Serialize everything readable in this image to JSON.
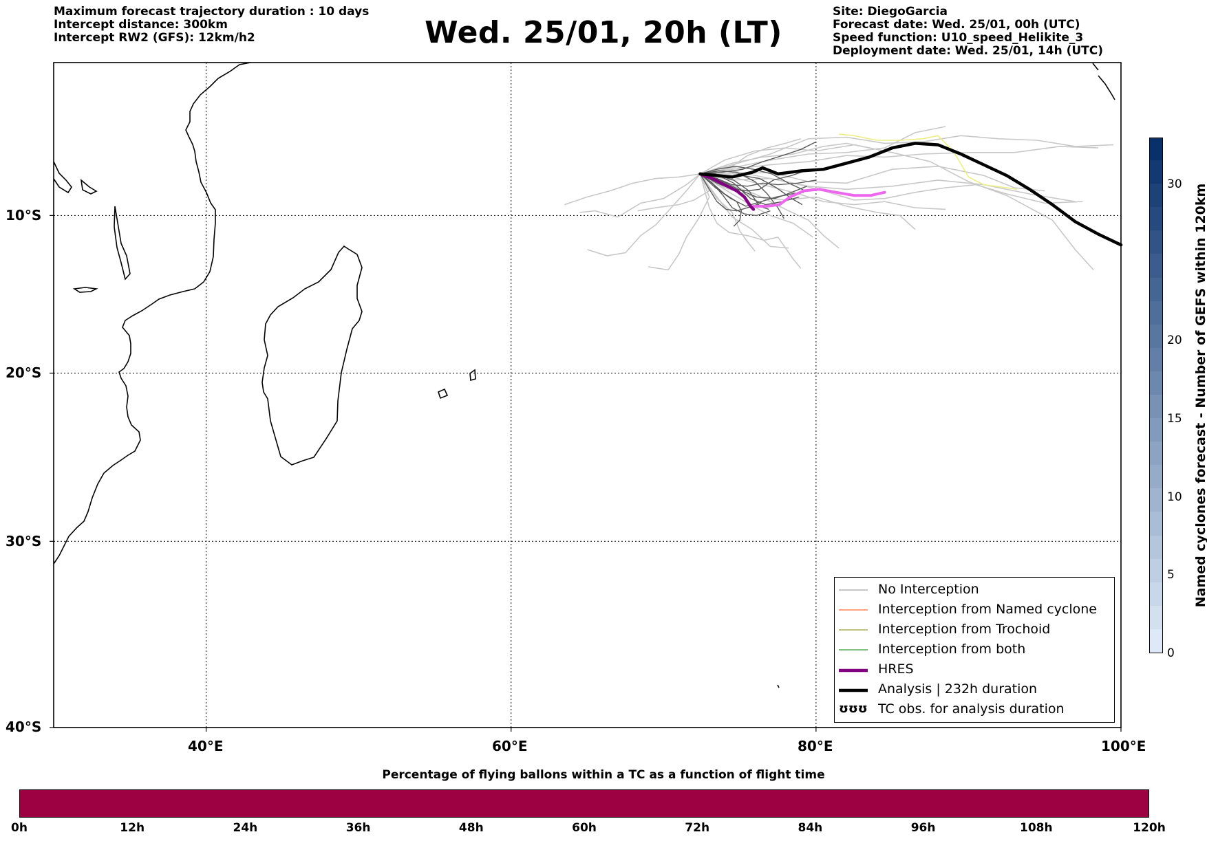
{
  "header": {
    "left_lines": [
      "Maximum forecast trajectory duration : 10 days",
      "Intercept distance: 300km",
      "Intercept RW2 (GFS):  12km/h2"
    ],
    "title": "Wed. 25/01, 20h (LT)",
    "right_lines": [
      "Site: DiegoGarcia",
      "Forecast date: Wed. 25/01, 00h (UTC)",
      "Speed function: U10_speed_Helikite_3",
      "Deployment date: Wed. 25/01, 14h (UTC)"
    ]
  },
  "map": {
    "lon_range": [
      30,
      100
    ],
    "lat_range": [
      -40,
      0
    ],
    "lon_ticks": [
      {
        "value": 40,
        "label": "40°E"
      },
      {
        "value": 60,
        "label": "60°E"
      },
      {
        "value": 80,
        "label": "80°E"
      },
      {
        "value": 100,
        "label": "100°E"
      }
    ],
    "lat_ticks": [
      {
        "value": -10,
        "label": "10°S"
      },
      {
        "value": -20,
        "label": "20°S"
      },
      {
        "value": -30,
        "label": "30°S"
      },
      {
        "value": -40,
        "label": "40°S"
      }
    ],
    "grid": "dotted",
    "deployment_site": {
      "lon": 72.4,
      "lat": -7.3
    },
    "analysis_track": [
      [
        72.4,
        -7.3
      ],
      [
        73.5,
        -7.4
      ],
      [
        74.5,
        -7.5
      ],
      [
        75.8,
        -7.2
      ],
      [
        76.5,
        -6.9
      ],
      [
        77.5,
        -7.3
      ],
      [
        79,
        -7.1
      ],
      [
        80.5,
        -7.0
      ],
      [
        82,
        -6.6
      ],
      [
        83.5,
        -6.2
      ],
      [
        85,
        -5.6
      ],
      [
        86.5,
        -5.3
      ],
      [
        88,
        -5.4
      ],
      [
        89.5,
        -6.0
      ],
      [
        91,
        -6.7
      ],
      [
        92.5,
        -7.4
      ],
      [
        94,
        -8.3
      ],
      [
        95.5,
        -9.3
      ],
      [
        97,
        -10.4
      ],
      [
        98.5,
        -11.2
      ],
      [
        100,
        -11.9
      ]
    ],
    "hres_track": [
      [
        72.4,
        -7.3
      ],
      [
        73.2,
        -7.6
      ],
      [
        74.0,
        -8.0
      ],
      [
        74.8,
        -8.4
      ],
      [
        75.3,
        -8.8
      ],
      [
        75.7,
        -9.4
      ],
      [
        75.9,
        -9.6
      ]
    ],
    "hres_light_track": [
      [
        75.9,
        -9.4
      ],
      [
        76.8,
        -9.4
      ],
      [
        77.6,
        -9.3
      ],
      [
        78.3,
        -8.8
      ],
      [
        79.2,
        -8.4
      ],
      [
        80.2,
        -8.3
      ],
      [
        81.3,
        -8.5
      ],
      [
        82.5,
        -8.7
      ],
      [
        83.6,
        -8.7
      ],
      [
        84.5,
        -8.5
      ]
    ],
    "yellow_track": [
      [
        81.5,
        -4.7
      ],
      [
        82.5,
        -4.8
      ],
      [
        84,
        -5.1
      ],
      [
        85.5,
        -5.1
      ],
      [
        87,
        -5.0
      ],
      [
        88,
        -4.8
      ],
      [
        89,
        -5.8
      ],
      [
        90,
        -7.5
      ],
      [
        91,
        -8.0
      ],
      [
        92.5,
        -8.2
      ],
      [
        93.2,
        -8.3
      ]
    ],
    "gefs_tracks_dark": [
      [
        [
          72.4,
          -7.3
        ],
        [
          73.5,
          -7.9
        ],
        [
          74.5,
          -8.3
        ],
        [
          75.5,
          -8.4
        ],
        [
          76.3,
          -8.3
        ],
        [
          77.2,
          -7.7
        ],
        [
          78.4,
          -7.4
        ],
        [
          79.6,
          -7.0
        ]
      ],
      [
        [
          72.4,
          -7.3
        ],
        [
          73.4,
          -8.2
        ],
        [
          74.4,
          -8.9
        ],
        [
          75.4,
          -9.4
        ],
        [
          76.4,
          -9.1
        ],
        [
          77.4,
          -8.8
        ],
        [
          78.4,
          -8.6
        ],
        [
          79.2,
          -8.5
        ]
      ],
      [
        [
          72.4,
          -7.3
        ],
        [
          73.6,
          -7.4
        ],
        [
          74.6,
          -7.7
        ],
        [
          75.6,
          -8.4
        ],
        [
          76.3,
          -9.4
        ],
        [
          76.9,
          -9.6
        ]
      ],
      [
        [
          72.4,
          -7.3
        ],
        [
          73.3,
          -8.0
        ],
        [
          74.0,
          -8.6
        ],
        [
          74.8,
          -9.1
        ],
        [
          75.1,
          -9.7
        ],
        [
          75.0,
          -10.3
        ],
        [
          74.6,
          -10.7
        ]
      ],
      [
        [
          72.4,
          -7.3
        ],
        [
          73.8,
          -7.2
        ],
        [
          75.2,
          -7.0
        ],
        [
          76.5,
          -6.5
        ],
        [
          77.8,
          -6.1
        ],
        [
          79.0,
          -5.7
        ],
        [
          80.0,
          -5.2
        ]
      ],
      [
        [
          72.4,
          -7.3
        ],
        [
          73.5,
          -7.6
        ],
        [
          74.5,
          -8.0
        ],
        [
          75.5,
          -8.1
        ],
        [
          76.5,
          -7.9
        ],
        [
          77.5,
          -8.0
        ],
        [
          78.8,
          -7.9
        ],
        [
          80.0,
          -7.7
        ]
      ],
      [
        [
          72.4,
          -7.3
        ],
        [
          73.0,
          -8.3
        ],
        [
          73.5,
          -9.1
        ],
        [
          74.1,
          -9.6
        ],
        [
          74.8,
          -9.7
        ],
        [
          75.5,
          -9.5
        ],
        [
          76.4,
          -9.2
        ]
      ],
      [
        [
          72.4,
          -7.3
        ],
        [
          73.7,
          -7.7
        ],
        [
          74.9,
          -8.3
        ],
        [
          76.1,
          -8.8
        ],
        [
          77.3,
          -8.9
        ],
        [
          78.4,
          -8.5
        ],
        [
          79.4,
          -8.1
        ]
      ],
      [
        [
          72.4,
          -7.3
        ],
        [
          73.5,
          -7.0
        ],
        [
          74.7,
          -6.8
        ],
        [
          75.9,
          -7.0
        ],
        [
          77.1,
          -7.3
        ],
        [
          78.2,
          -7.9
        ],
        [
          79.3,
          -8.4
        ]
      ],
      [
        [
          72.4,
          -7.3
        ],
        [
          73.2,
          -7.9
        ],
        [
          73.9,
          -8.7
        ],
        [
          74.5,
          -9.5
        ],
        [
          75.3,
          -9.9
        ],
        [
          76.1,
          -10.0
        ],
        [
          77.0,
          -9.7
        ]
      ],
      [
        [
          72.4,
          -7.3
        ],
        [
          73.8,
          -7.5
        ],
        [
          75.1,
          -7.4
        ],
        [
          76.3,
          -7.6
        ],
        [
          77.4,
          -8.2
        ],
        [
          78.4,
          -8.9
        ],
        [
          79.1,
          -9.3
        ]
      ],
      [
        [
          72.4,
          -7.3
        ],
        [
          73.4,
          -7.3
        ],
        [
          74.6,
          -7.9
        ],
        [
          75.7,
          -8.9
        ],
        [
          76.7,
          -9.3
        ],
        [
          77.8,
          -9.1
        ],
        [
          78.9,
          -8.8
        ]
      ],
      [
        [
          72.4,
          -7.3
        ],
        [
          73.6,
          -7.1
        ],
        [
          74.8,
          -7.2
        ],
        [
          76.0,
          -7.8
        ],
        [
          76.8,
          -8.6
        ],
        [
          77.5,
          -9.5
        ],
        [
          77.9,
          -10.2
        ]
      ]
    ],
    "gefs_tracks_light": [
      [
        [
          72.4,
          -7.3
        ],
        [
          74.5,
          -6.7
        ],
        [
          77,
          -6.0
        ],
        [
          79.5,
          -5.0
        ],
        [
          82,
          -4.9
        ],
        [
          84.5,
          -5.3
        ],
        [
          87,
          -5.2
        ],
        [
          89.5,
          -4.8
        ],
        [
          92,
          -5.0
        ],
        [
          94.5,
          -5.1
        ],
        [
          97,
          -5.5
        ],
        [
          99.5,
          -5.4
        ]
      ],
      [
        [
          72.4,
          -7.3
        ],
        [
          74.5,
          -7.0
        ],
        [
          77,
          -6.7
        ],
        [
          79.5,
          -6.5
        ],
        [
          82,
          -6.1
        ],
        [
          84.5,
          -6.2
        ],
        [
          87,
          -6.0
        ],
        [
          90,
          -5.9
        ],
        [
          93,
          -5.9
        ],
        [
          96,
          -5.5
        ],
        [
          98.5,
          -5.6
        ]
      ],
      [
        [
          72.4,
          -7.3
        ],
        [
          74.5,
          -7.7
        ],
        [
          77,
          -7.6
        ],
        [
          79.5,
          -8.1
        ],
        [
          82,
          -8.3
        ],
        [
          85,
          -8.1
        ],
        [
          88,
          -7.7
        ],
        [
          91,
          -8.0
        ],
        [
          94,
          -8.6
        ],
        [
          97,
          -9.1
        ]
      ],
      [
        [
          72.4,
          -7.3
        ],
        [
          74.5,
          -7.3
        ],
        [
          77,
          -7.2
        ],
        [
          79.5,
          -7.8
        ],
        [
          82,
          -7.9
        ],
        [
          85,
          -7.0
        ],
        [
          88,
          -6.8
        ],
        [
          91,
          -7.4
        ],
        [
          93,
          -8.2
        ],
        [
          95,
          -8.4
        ]
      ],
      [
        [
          72.4,
          -7.3
        ],
        [
          74,
          -6.4
        ],
        [
          76,
          -5.8
        ],
        [
          78,
          -5.6
        ],
        [
          80,
          -5.8
        ],
        [
          82.5,
          -5.4
        ],
        [
          85,
          -5.9
        ],
        [
          87.5,
          -6.5
        ],
        [
          90,
          -7.8
        ],
        [
          92.5,
          -8.7
        ],
        [
          95.5,
          -10.3
        ],
        [
          97,
          -12.2
        ],
        [
          98.2,
          -13.5
        ]
      ],
      [
        [
          72.4,
          -7.3
        ],
        [
          74.5,
          -6.9
        ],
        [
          77,
          -6.4
        ],
        [
          79.5,
          -6.0
        ],
        [
          82,
          -5.9
        ],
        [
          84.5,
          -5.6
        ],
        [
          86.5,
          -4.6
        ],
        [
          88.5,
          -4.2
        ]
      ],
      [
        [
          72.4,
          -7.3
        ],
        [
          71,
          -7.5
        ],
        [
          69.5,
          -7.6
        ],
        [
          68,
          -7.9
        ],
        [
          66.5,
          -8.4
        ],
        [
          65,
          -8.8
        ],
        [
          63.5,
          -9.3
        ]
      ],
      [
        [
          72.4,
          -7.3
        ],
        [
          71.5,
          -8.0
        ],
        [
          70,
          -8.9
        ],
        [
          68.5,
          -9.2
        ],
        [
          67,
          -10.1
        ],
        [
          65.5,
          -9.7
        ],
        [
          64.5,
          -9.8
        ]
      ],
      [
        [
          72.4,
          -7.3
        ],
        [
          71.5,
          -8.4
        ],
        [
          70.5,
          -9.5
        ],
        [
          69.5,
          -10.6
        ],
        [
          68.5,
          -11.3
        ],
        [
          67.5,
          -12.4
        ],
        [
          66.3,
          -12.6
        ],
        [
          65.0,
          -12.2
        ]
      ],
      [
        [
          72.4,
          -7.3
        ],
        [
          73.0,
          -8.8
        ],
        [
          72.3,
          -10.2
        ],
        [
          71.5,
          -11.4
        ],
        [
          71.0,
          -12.5
        ],
        [
          70.3,
          -13.5
        ],
        [
          69.0,
          -13.3
        ]
      ],
      [
        [
          72.4,
          -7.3
        ],
        [
          73.5,
          -8.8
        ],
        [
          74.5,
          -10.1
        ],
        [
          75.8,
          -10.9
        ],
        [
          77.0,
          -12.0
        ],
        [
          78.2,
          -12.1
        ]
      ],
      [
        [
          72.4,
          -7.3
        ],
        [
          73.0,
          -9.5
        ],
        [
          73.5,
          -10.5
        ],
        [
          74.3,
          -11.1
        ],
        [
          75.5,
          -11.3
        ],
        [
          76.6,
          -11.6
        ],
        [
          77.5,
          -11.4
        ],
        [
          78.5,
          -12.8
        ],
        [
          79.0,
          -13.4
        ]
      ],
      [
        [
          72.4,
          -7.3
        ],
        [
          74,
          -8.2
        ],
        [
          76,
          -8.8
        ],
        [
          78,
          -9.0
        ],
        [
          80,
          -8.8
        ],
        [
          82,
          -9.4
        ],
        [
          84,
          -9.8
        ],
        [
          85.5,
          -10.0
        ],
        [
          86.5,
          -10.9
        ]
      ],
      [
        [
          72.4,
          -7.3
        ],
        [
          74,
          -7.9
        ],
        [
          76,
          -8.6
        ],
        [
          78,
          -9.6
        ],
        [
          79.5,
          -10.3
        ],
        [
          80.5,
          -11.3
        ],
        [
          81.5,
          -12.1
        ]
      ],
      [
        [
          72.4,
          -7.3
        ],
        [
          74,
          -8.3
        ],
        [
          75.5,
          -9.2
        ],
        [
          77,
          -10.0
        ],
        [
          78.5,
          -10.5
        ],
        [
          79.8,
          -11.4
        ]
      ],
      [
        [
          72.4,
          -7.3
        ],
        [
          74.5,
          -7.1
        ],
        [
          76.5,
          -7.5
        ],
        [
          78.5,
          -7.9
        ],
        [
          80.5,
          -8.4
        ],
        [
          82.5,
          -9.0
        ],
        [
          84.5,
          -8.9
        ],
        [
          86.5,
          -8.5
        ],
        [
          88.5,
          -8.2
        ],
        [
          90.5,
          -8.0
        ],
        [
          92.5,
          -8.6
        ],
        [
          95,
          -9.2
        ],
        [
          97.5,
          -9.1
        ]
      ],
      [
        [
          72.4,
          -7.3
        ],
        [
          74.5,
          -7.5
        ],
        [
          76.5,
          -8.0
        ],
        [
          78.5,
          -8.5
        ],
        [
          80.5,
          -9.1
        ],
        [
          82.5,
          -9.3
        ],
        [
          84.5,
          -9.1
        ],
        [
          86.5,
          -9.5
        ],
        [
          88.5,
          -9.6
        ]
      ],
      [
        [
          72.4,
          -7.3
        ],
        [
          73.0,
          -8.4
        ],
        [
          72.0,
          -9.0
        ],
        [
          71.0,
          -9.3
        ],
        [
          69.5,
          -9.5
        ],
        [
          68.3,
          -9.7
        ]
      ],
      [
        [
          72.4,
          -7.3
        ],
        [
          73.5,
          -7.2
        ],
        [
          74.5,
          -6.8
        ],
        [
          75.5,
          -6.1
        ],
        [
          76.8,
          -5.6
        ],
        [
          78.0,
          -5.3
        ],
        [
          79.0,
          -5.0
        ]
      ],
      [
        [
          72.4,
          -7.3
        ],
        [
          74.5,
          -6.6
        ],
        [
          76.5,
          -6.2
        ],
        [
          78.5,
          -6.0
        ],
        [
          80.5,
          -5.5
        ],
        [
          82.0,
          -5.3
        ],
        [
          83.5,
          -5.6
        ]
      ],
      [
        [
          72.4,
          -7.3
        ],
        [
          73.5,
          -8.9
        ],
        [
          74.5,
          -9.8
        ],
        [
          75.0,
          -11.0
        ],
        [
          75.5,
          -11.7
        ],
        [
          76.0,
          -12.3
        ]
      ]
    ]
  },
  "legend": {
    "items": [
      {
        "label": "No Interception",
        "color": "#8c8c8c",
        "width": 1
      },
      {
        "label": "Interception from Named cyclone",
        "color": "#ff4500",
        "width": 1
      },
      {
        "label": "Interception from Trochoid",
        "color": "#808000",
        "width": 1
      },
      {
        "label": "Interception from both",
        "color": "#008000",
        "width": 1
      },
      {
        "label": "HRES",
        "color": "#800080",
        "width": 4
      },
      {
        "label": "Analysis | 232h duration",
        "color": "#000000",
        "width": 4
      }
    ],
    "tc_obs": {
      "glyph": "ʊʊʊ",
      "label": "TC obs. for analysis duration"
    }
  },
  "colorbar": {
    "title": "Named cyclones forecast - Number of GEFS within 120km",
    "min": 0,
    "max": 33,
    "ticks": [
      0,
      5,
      10,
      15,
      20,
      30
    ],
    "color_low": "#dde9f7",
    "color_high": "#08306b"
  },
  "progress_bar": {
    "title": "Percentage of flying ballons within a TC as a function of flight time",
    "color": "#9e0142",
    "ticks": [
      "0h",
      "12h",
      "24h",
      "36h",
      "48h",
      "60h",
      "72h",
      "84h",
      "96h",
      "108h",
      "120h"
    ]
  }
}
